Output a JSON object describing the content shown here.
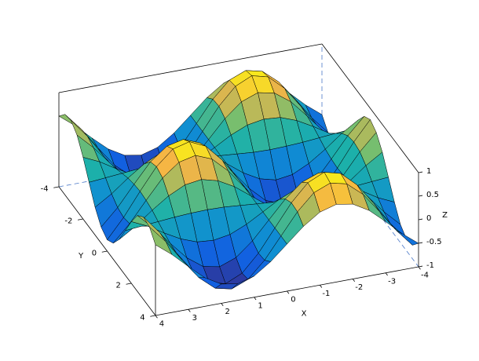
{
  "chart_data": {
    "type": "surface",
    "xlabel": "X",
    "ylabel": "Y",
    "zlabel": "Z",
    "x": [
      -4,
      -3.5,
      -3,
      -2.5,
      -2,
      -1.5,
      -1,
      -0.5,
      0,
      0.5,
      1,
      1.5,
      2,
      2.5,
      3,
      3.5,
      4
    ],
    "y": [
      -4,
      -3.5,
      -3,
      -2.5,
      -2,
      -1.5,
      -1,
      -0.5,
      0,
      0.5,
      1,
      1.5,
      2,
      2.5,
      3,
      3.5,
      4
    ],
    "z": [
      [
        -0.5,
        -0.23,
        0.09,
        0.39,
        0.59,
        0.65,
        0.55,
        0.31,
        0,
        -0.31,
        -0.55,
        -0.65,
        -0.59,
        -0.39,
        -0.09,
        0.23,
        0.5
      ],
      [
        -0.71,
        -0.33,
        0.13,
        0.56,
        0.85,
        0.93,
        0.79,
        0.45,
        0,
        -0.45,
        -0.79,
        -0.93,
        -0.85,
        -0.56,
        -0.13,
        0.33,
        0.71
      ],
      [
        -0.75,
        -0.35,
        0.14,
        0.59,
        0.9,
        0.99,
        0.83,
        0.47,
        0,
        -0.47,
        -0.83,
        -0.99,
        -0.9,
        -0.59,
        -0.14,
        0.35,
        0.75
      ],
      [
        -0.61,
        -0.28,
        0.11,
        0.48,
        0.73,
        0.8,
        0.67,
        0.38,
        0,
        -0.38,
        -0.67,
        -0.8,
        -0.73,
        -0.48,
        -0.11,
        0.28,
        0.61
      ],
      [
        -0.31,
        -0.15,
        0.06,
        0.25,
        0.38,
        0.41,
        0.35,
        0.2,
        0,
        -0.2,
        -0.35,
        -0.41,
        -0.38,
        -0.25,
        -0.06,
        0.15,
        0.31
      ],
      [
        0.05,
        0.02,
        -0.01,
        -0.04,
        -0.06,
        -0.07,
        -0.06,
        -0.03,
        0,
        0.03,
        0.06,
        0.07,
        0.06,
        0.04,
        0.01,
        -0.02,
        -0.05
      ],
      [
        0.41,
        0.19,
        -0.08,
        -0.32,
        -0.49,
        -0.54,
        -0.45,
        -0.26,
        0,
        0.26,
        0.45,
        0.54,
        0.49,
        0.32,
        0.08,
        -0.19,
        -0.41
      ],
      [
        0.66,
        0.31,
        -0.12,
        -0.53,
        -0.8,
        -0.88,
        -0.74,
        -0.42,
        0,
        0.42,
        0.74,
        0.88,
        0.8,
        0.53,
        0.12,
        -0.31,
        -0.66
      ],
      [
        0.76,
        0.35,
        -0.14,
        -0.6,
        -0.91,
        -1,
        -0.84,
        -0.48,
        0,
        0.48,
        0.84,
        1,
        0.91,
        0.6,
        0.14,
        -0.35,
        -0.76
      ],
      [
        0.66,
        0.31,
        -0.12,
        -0.53,
        -0.8,
        -0.88,
        -0.74,
        -0.42,
        0,
        0.42,
        0.74,
        0.88,
        0.8,
        0.53,
        0.12,
        -0.31,
        -0.66
      ],
      [
        0.41,
        0.19,
        -0.08,
        -0.32,
        -0.49,
        -0.54,
        -0.45,
        -0.26,
        0,
        0.26,
        0.45,
        0.54,
        0.49,
        0.32,
        0.08,
        -0.19,
        -0.41
      ],
      [
        0.05,
        0.02,
        -0.01,
        -0.04,
        -0.06,
        -0.07,
        -0.06,
        -0.03,
        0,
        0.03,
        0.06,
        0.07,
        0.06,
        0.04,
        0.01,
        -0.02,
        -0.05
      ],
      [
        -0.31,
        -0.15,
        0.06,
        0.25,
        0.38,
        0.41,
        0.35,
        0.2,
        0,
        -0.2,
        -0.35,
        -0.41,
        -0.38,
        -0.25,
        -0.06,
        0.15,
        0.31
      ],
      [
        -0.61,
        -0.28,
        0.11,
        0.48,
        0.73,
        0.8,
        0.67,
        0.38,
        0,
        -0.38,
        -0.67,
        -0.8,
        -0.73,
        -0.48,
        -0.11,
        0.28,
        0.61
      ],
      [
        -0.75,
        -0.35,
        0.14,
        0.59,
        0.9,
        0.99,
        0.83,
        0.47,
        0,
        -0.47,
        -0.83,
        -0.99,
        -0.9,
        -0.59,
        -0.14,
        0.35,
        0.75
      ],
      [
        -0.71,
        -0.33,
        0.13,
        0.56,
        0.85,
        0.93,
        0.79,
        0.45,
        0,
        -0.45,
        -0.79,
        -0.93,
        -0.85,
        -0.56,
        -0.13,
        0.33,
        0.71
      ],
      [
        -0.5,
        -0.23,
        0.09,
        0.39,
        0.59,
        0.65,
        0.55,
        0.31,
        0,
        -0.31,
        -0.55,
        -0.65,
        -0.59,
        -0.39,
        -0.09,
        0.23,
        0.5
      ]
    ],
    "xlim": [
      -4,
      4
    ],
    "ylim": [
      -4,
      4
    ],
    "zlim": [
      -1,
      1
    ],
    "xticks": [
      -4,
      -3,
      -2,
      -1,
      0,
      1,
      2,
      3,
      4
    ],
    "yticks": [
      -4,
      -2,
      0,
      2,
      4
    ],
    "zticks": [
      -1,
      -0.5,
      0,
      0.5,
      1
    ],
    "colormap": "parula"
  }
}
